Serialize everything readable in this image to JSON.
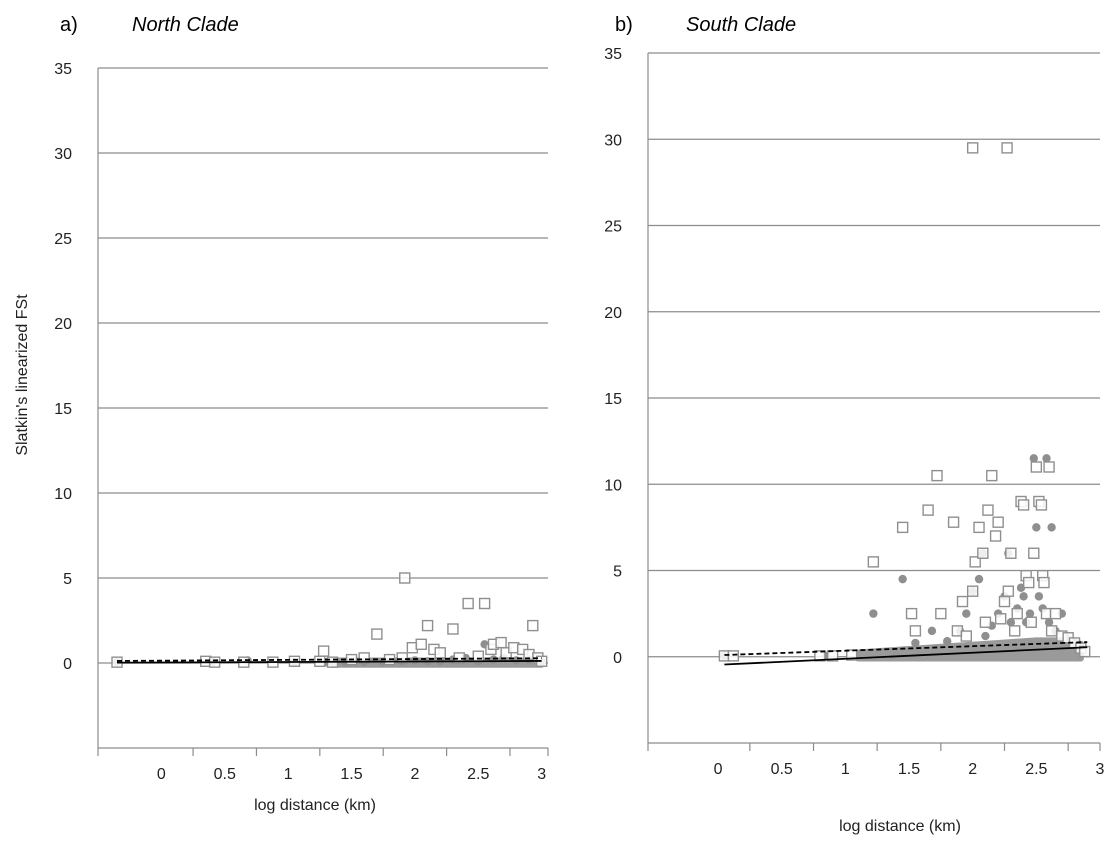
{
  "chart_data": [
    {
      "type": "scatter",
      "panel_label": "a)",
      "title": "North Clade",
      "xlabel": "log distance (km)",
      "ylabel": "Slatkin's linearized FSt",
      "xlim": [
        -0.5,
        3.05
      ],
      "ylim": [
        -5,
        35
      ],
      "y_ticks": [
        0,
        5,
        10,
        15,
        20,
        25,
        30,
        35
      ],
      "x_ticks": [
        0,
        0.5,
        1,
        1.5,
        2,
        2.5,
        3
      ],
      "grid": true,
      "series": [
        {
          "marker": "open-square",
          "points": [
            [
              -0.35,
              0.05
            ],
            [
              0.35,
              0.1
            ],
            [
              0.42,
              0.05
            ],
            [
              0.65,
              0.05
            ],
            [
              0.88,
              0.05
            ],
            [
              1.05,
              0.1
            ],
            [
              1.25,
              0.1
            ],
            [
              1.28,
              0.7
            ],
            [
              1.35,
              0.05
            ],
            [
              1.5,
              0.2
            ],
            [
              1.6,
              0.3
            ],
            [
              1.7,
              1.7
            ],
            [
              1.8,
              0.2
            ],
            [
              1.9,
              0.3
            ],
            [
              1.92,
              5.0
            ],
            [
              1.98,
              0.9
            ],
            [
              2.05,
              1.1
            ],
            [
              2.1,
              2.2
            ],
            [
              2.15,
              0.8
            ],
            [
              2.2,
              0.6
            ],
            [
              2.3,
              2.0
            ],
            [
              2.35,
              0.3
            ],
            [
              2.42,
              3.5
            ],
            [
              2.5,
              0.4
            ],
            [
              2.55,
              3.5
            ],
            [
              2.6,
              0.8
            ],
            [
              2.62,
              1.1
            ],
            [
              2.68,
              1.2
            ],
            [
              2.72,
              0.6
            ],
            [
              2.78,
              0.9
            ],
            [
              2.85,
              0.8
            ],
            [
              2.9,
              0.5
            ],
            [
              2.93,
              2.2
            ],
            [
              2.97,
              0.3
            ],
            [
              3.0,
              0.1
            ]
          ]
        },
        {
          "marker": "filled-circle",
          "points": [
            [
              -0.35,
              0.05
            ],
            [
              0.4,
              0.05
            ],
            [
              0.68,
              0.15
            ],
            [
              1.05,
              0.05
            ],
            [
              1.3,
              0.05
            ],
            [
              1.45,
              0.05
            ],
            [
              1.6,
              0.05
            ],
            [
              1.75,
              0.05
            ],
            [
              1.9,
              0.1
            ],
            [
              2.0,
              0.15
            ],
            [
              2.1,
              0.1
            ],
            [
              2.2,
              0.1
            ],
            [
              2.3,
              0.2
            ],
            [
              2.4,
              0.3
            ],
            [
              2.5,
              0.1
            ],
            [
              2.55,
              1.1
            ],
            [
              2.62,
              0.2
            ],
            [
              2.7,
              0.3
            ],
            [
              2.8,
              0.15
            ],
            [
              2.9,
              0.2
            ],
            [
              3.0,
              0.05
            ]
          ]
        },
        {
          "marker": "dense-band",
          "points": [
            [
              1.35,
              0.0
            ],
            [
              1.5,
              0.0
            ],
            [
              1.65,
              0.0
            ],
            [
              1.8,
              0.0
            ],
            [
              1.95,
              0.0
            ],
            [
              2.1,
              0.0
            ],
            [
              2.25,
              0.0
            ],
            [
              2.4,
              0.0
            ],
            [
              2.55,
              0.0
            ],
            [
              2.7,
              0.0
            ],
            [
              2.85,
              0.0
            ],
            [
              3.0,
              0.0
            ]
          ]
        }
      ],
      "trend_lines": [
        {
          "style": "solid",
          "x": [
            -0.35,
            3.0
          ],
          "y": [
            0.02,
            0.12
          ]
        },
        {
          "style": "dashed",
          "x": [
            -0.35,
            3.0
          ],
          "y": [
            0.12,
            0.28
          ]
        }
      ]
    },
    {
      "type": "scatter",
      "panel_label": "b)",
      "title": "South Clade",
      "xlabel": "log distance (km)",
      "ylabel": "",
      "xlim": [
        -0.55,
        3.0
      ],
      "ylim": [
        -5,
        35
      ],
      "y_ticks": [
        0,
        5,
        10,
        15,
        20,
        25,
        30,
        35
      ],
      "x_ticks": [
        0,
        0.5,
        1,
        1.5,
        2,
        2.5,
        3
      ],
      "grid": true,
      "series": [
        {
          "marker": "open-square",
          "points": [
            [
              0.05,
              0.05
            ],
            [
              0.12,
              0.05
            ],
            [
              0.8,
              0.05
            ],
            [
              0.9,
              0.05
            ],
            [
              1.05,
              0.1
            ],
            [
              1.22,
              5.5
            ],
            [
              1.45,
              7.5
            ],
            [
              1.55,
              1.5
            ],
            [
              1.52,
              2.5
            ],
            [
              1.65,
              8.5
            ],
            [
              1.72,
              10.5
            ],
            [
              1.75,
              2.5
            ],
            [
              1.85,
              7.8
            ],
            [
              1.88,
              1.5
            ],
            [
              1.92,
              3.2
            ],
            [
              1.95,
              1.2
            ],
            [
              2.0,
              29.5
            ],
            [
              2.0,
              3.8
            ],
            [
              2.02,
              5.5
            ],
            [
              2.05,
              7.5
            ],
            [
              2.08,
              6.0
            ],
            [
              2.1,
              2.0
            ],
            [
              2.12,
              8.5
            ],
            [
              2.15,
              10.5
            ],
            [
              2.18,
              7.0
            ],
            [
              2.2,
              7.8
            ],
            [
              2.22,
              2.2
            ],
            [
              2.25,
              3.2
            ],
            [
              2.27,
              29.5
            ],
            [
              2.28,
              3.8
            ],
            [
              2.3,
              6.0
            ],
            [
              2.33,
              1.5
            ],
            [
              2.35,
              2.5
            ],
            [
              2.38,
              9.0
            ],
            [
              2.4,
              8.8
            ],
            [
              2.42,
              4.7
            ],
            [
              2.44,
              4.3
            ],
            [
              2.46,
              2.0
            ],
            [
              2.48,
              6.0
            ],
            [
              2.5,
              11.0
            ],
            [
              2.52,
              9.0
            ],
            [
              2.54,
              8.8
            ],
            [
              2.55,
              4.7
            ],
            [
              2.56,
              4.3
            ],
            [
              2.58,
              2.5
            ],
            [
              2.6,
              11.0
            ],
            [
              2.62,
              1.5
            ],
            [
              2.65,
              2.5
            ],
            [
              2.7,
              1.2
            ],
            [
              2.75,
              1.1
            ],
            [
              2.8,
              0.8
            ],
            [
              2.85,
              0.5
            ],
            [
              2.88,
              0.3
            ]
          ]
        },
        {
          "marker": "filled-circle",
          "points": [
            [
              0.05,
              0.05
            ],
            [
              0.85,
              0.05
            ],
            [
              1.22,
              2.5
            ],
            [
              1.45,
              4.5
            ],
            [
              1.55,
              0.8
            ],
            [
              1.68,
              1.5
            ],
            [
              1.8,
              0.9
            ],
            [
              1.9,
              1.5
            ],
            [
              1.95,
              2.5
            ],
            [
              2.0,
              3.8
            ],
            [
              2.05,
              4.5
            ],
            [
              2.08,
              6.0
            ],
            [
              2.1,
              1.2
            ],
            [
              2.15,
              1.8
            ],
            [
              2.2,
              2.5
            ],
            [
              2.25,
              3.5
            ],
            [
              2.28,
              6.0
            ],
            [
              2.3,
              2.0
            ],
            [
              2.35,
              2.8
            ],
            [
              2.38,
              4.0
            ],
            [
              2.4,
              3.5
            ],
            [
              2.42,
              2.0
            ],
            [
              2.45,
              2.5
            ],
            [
              2.48,
              11.5
            ],
            [
              2.5,
              7.5
            ],
            [
              2.52,
              3.5
            ],
            [
              2.55,
              2.8
            ],
            [
              2.58,
              11.5
            ],
            [
              2.6,
              2.0
            ],
            [
              2.62,
              7.5
            ],
            [
              2.65,
              1.5
            ],
            [
              2.7,
              2.5
            ],
            [
              2.75,
              1.0
            ],
            [
              2.8,
              0.8
            ],
            [
              2.85,
              0.5
            ]
          ]
        },
        {
          "marker": "dense-band",
          "points": [
            [
              1.1,
              0.1
            ],
            [
              1.3,
              0.2
            ],
            [
              1.5,
              0.3
            ],
            [
              1.7,
              0.4
            ],
            [
              1.9,
              0.5
            ],
            [
              2.1,
              0.6
            ],
            [
              2.3,
              0.7
            ],
            [
              2.5,
              0.8
            ],
            [
              2.7,
              0.8
            ],
            [
              2.85,
              0.6
            ]
          ]
        }
      ],
      "trend_lines": [
        {
          "style": "solid",
          "x": [
            0.05,
            2.9
          ],
          "y": [
            -0.45,
            0.55
          ]
        },
        {
          "style": "dashed",
          "x": [
            0.05,
            2.9
          ],
          "y": [
            0.1,
            0.85
          ]
        }
      ]
    }
  ]
}
